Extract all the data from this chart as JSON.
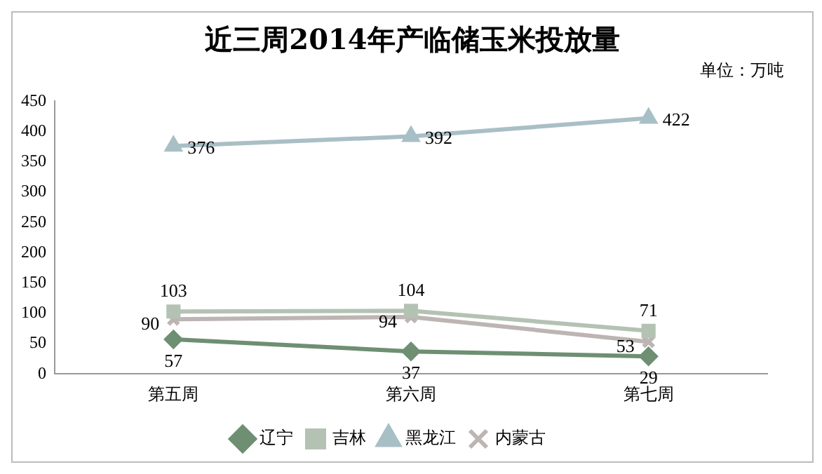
{
  "chart_data": {
    "type": "line",
    "title": "近三周2014年产临储玉米投放量",
    "annotations": [
      "单位：万吨"
    ],
    "categories": [
      "第五周",
      "第六周",
      "第七周"
    ],
    "series": [
      {
        "name": "辽宁",
        "color": "#6e8f72",
        "values": [
          57,
          37,
          29
        ],
        "marker": "diamond"
      },
      {
        "name": "吉林",
        "color": "#b4c2b4",
        "values": [
          103,
          104,
          71
        ],
        "marker": "square"
      },
      {
        "name": "黑龙江",
        "color": "#a9bfc6",
        "values": [
          376,
          392,
          422
        ],
        "marker": "triangle"
      },
      {
        "name": "内蒙古",
        "color": "#bdb5b3",
        "values": [
          90,
          94,
          53
        ],
        "marker": "cross"
      }
    ],
    "ylim": [
      0,
      450
    ],
    "yticks": [
      0,
      50,
      100,
      150,
      200,
      250,
      300,
      350,
      400,
      450
    ],
    "grid": false,
    "legend": "bottom",
    "data_labels": true,
    "line_style": "solid"
  }
}
